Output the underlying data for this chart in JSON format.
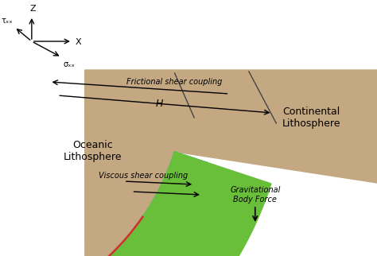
{
  "bg_color": "#ffffff",
  "oceanic_green": "#6abf3a",
  "teal_band": "#00b0b0",
  "continental_tan": "#c4a882",
  "ocean_blue": "#9ab8d8",
  "red_fault": "#d03030",
  "labels": {
    "oceanic": "Oceanic\nLithosphere",
    "continental": "Continental\nLithosphere",
    "frictional": "Frictional shear coupling",
    "H_label": "H",
    "viscous": "Viscous shear coupling",
    "gravity": "Gravitational\nBody Force",
    "z_axis": "Z",
    "x_axis": "X",
    "tau": "τₓₓ",
    "sigma": "σₓₓ"
  },
  "font_size_main": 8,
  "font_size_small": 7,
  "font_size_axis": 7
}
